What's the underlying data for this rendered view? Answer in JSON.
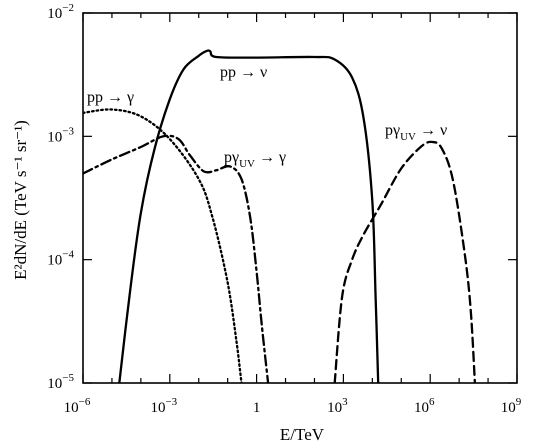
{
  "chart_data": {
    "type": "line",
    "title": "",
    "xlabel": "E/TeV",
    "ylabel": "E²dN/dE  (TeV s⁻¹ sr⁻¹)",
    "xscale": "log",
    "yscale": "log",
    "xlim": [
      1e-06,
      1000000000.0
    ],
    "ylim": [
      1e-05,
      0.01
    ],
    "grid": false,
    "legend": "none",
    "x_ticks": [
      {
        "value": 1e-06,
        "base": "10",
        "exp": "−6"
      },
      {
        "value": 0.001,
        "base": "10",
        "exp": "−3"
      },
      {
        "value": 1,
        "base": "1",
        "exp": ""
      },
      {
        "value": 1000.0,
        "base": "10",
        "exp": "3"
      },
      {
        "value": 1000000.0,
        "base": "10",
        "exp": "6"
      },
      {
        "value": 1000000000.0,
        "base": "10",
        "exp": "9"
      }
    ],
    "y_ticks": [
      {
        "value": 1e-05,
        "base": "10",
        "exp": "−5"
      },
      {
        "value": 0.0001,
        "base": "10",
        "exp": "−4"
      },
      {
        "value": 0.001,
        "base": "10",
        "exp": "−3"
      },
      {
        "value": 0.01,
        "base": "10",
        "exp": "−2"
      }
    ],
    "series": [
      {
        "label": "pp → γ",
        "style": "dotted",
        "points": [
          [
            1e-06,
            0.00155
          ],
          [
            1e-05,
            0.00165
          ],
          [
            0.0001,
            0.00145
          ],
          [
            0.001,
            0.00095
          ],
          [
            0.01,
            0.00045
          ],
          [
            0.03,
            0.00022
          ],
          [
            0.1,
            6.5e-05
          ],
          [
            0.2,
            2.2e-05
          ],
          [
            0.3,
            1e-05
          ]
        ]
      },
      {
        "label": "pp → ν",
        "style": "solid",
        "points": [
          [
            1.8e-05,
            1e-05
          ],
          [
            4e-05,
            5e-05
          ],
          [
            0.0001,
            0.00024
          ],
          [
            0.0003,
            0.0008
          ],
          [
            0.001,
            0.002
          ],
          [
            0.003,
            0.0035
          ],
          [
            0.01,
            0.0045
          ],
          [
            0.018,
            0.0049
          ],
          [
            0.025,
            0.0049
          ],
          [
            0.04,
            0.0044
          ],
          [
            1,
            0.00435
          ],
          [
            100,
            0.0044
          ],
          [
            500,
            0.0042
          ],
          [
            2000,
            0.003
          ],
          [
            5000,
            0.0014
          ],
          [
            10000.0,
            0.0003
          ],
          [
            13000.0,
            5e-05
          ],
          [
            16000.0,
            1e-05
          ]
        ]
      },
      {
        "label": "pγ",
        "label_sub": "UV",
        "label_tail": "→ γ",
        "style": "dashdot",
        "points": [
          [
            1e-06,
            0.0005
          ],
          [
            1e-05,
            0.00065
          ],
          [
            0.0001,
            0.00082
          ],
          [
            0.0006,
            0.001
          ],
          [
            0.002,
            0.00095
          ],
          [
            0.005,
            0.0007
          ],
          [
            0.015,
            0.00052
          ],
          [
            0.04,
            0.00053
          ],
          [
            0.12,
            0.00057
          ],
          [
            0.3,
            0.00045
          ],
          [
            0.6,
            0.00022
          ],
          [
            1,
            8e-05
          ],
          [
            1.5,
            3e-05
          ],
          [
            2.5,
            1e-05
          ]
        ]
      },
      {
        "label": "pγ",
        "label_sub": "UV",
        "label_tail": "→ ν",
        "style": "dashed",
        "points": [
          [
            500,
            1e-05
          ],
          [
            900,
            5e-05
          ],
          [
            2000,
            0.0001
          ],
          [
            5000,
            0.00016
          ],
          [
            20000.0,
            0.00028
          ],
          [
            100000.0,
            0.00055
          ],
          [
            500000.0,
            0.00083
          ],
          [
            1200000.0,
            0.0009
          ],
          [
            2500000.0,
            0.0008
          ],
          [
            6000000.0,
            0.00045
          ],
          [
            15000000.0,
            0.00012
          ],
          [
            25000000.0,
            4e-05
          ],
          [
            35000000.0,
            1e-05
          ]
        ]
      }
    ]
  }
}
